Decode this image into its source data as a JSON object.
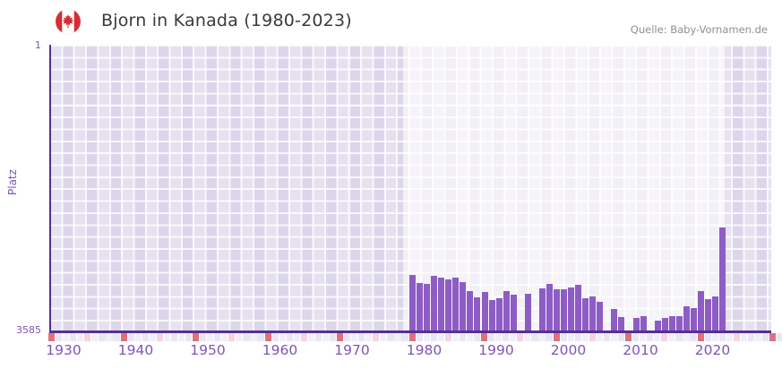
{
  "source": "Quelle: Baby-Vornamen.de",
  "chart_data": {
    "type": "bar",
    "title": "Bjorn in Kanada (1980-2023)",
    "ylabel": "Platz",
    "y_axis": {
      "top_label": "1",
      "bottom_label": "3585",
      "min": 1,
      "max": 3585,
      "inverted": true
    },
    "x_ticks": [
      1930,
      1940,
      1950,
      1960,
      1970,
      1980,
      1990,
      2000,
      2010,
      2020
    ],
    "x_range": [
      1930,
      2031
    ],
    "highlight_period": [
      1979,
      2023
    ],
    "grid": true,
    "legend": false,
    "colors": {
      "bar": "#8d5cc5",
      "axis": "#54318f",
      "decade_marker": "#e0707e",
      "half_decade_marker": "#f3d4e0",
      "marker_pale_a": "#f2eef9",
      "marker_pale_b": "#eae5f4",
      "tick_label": "#8055b8"
    },
    "points": [
      {
        "year": 1980,
        "platz": 2890
      },
      {
        "year": 1981,
        "platz": 2990
      },
      {
        "year": 1982,
        "platz": 3000
      },
      {
        "year": 1983,
        "platz": 2900
      },
      {
        "year": 1984,
        "platz": 2920
      },
      {
        "year": 1985,
        "platz": 2945
      },
      {
        "year": 1986,
        "platz": 2920
      },
      {
        "year": 1987,
        "platz": 2980
      },
      {
        "year": 1988,
        "platz": 3090
      },
      {
        "year": 1989,
        "platz": 3170
      },
      {
        "year": 1990,
        "platz": 3100
      },
      {
        "year": 1991,
        "platz": 3200
      },
      {
        "year": 1992,
        "platz": 3180
      },
      {
        "year": 1993,
        "platz": 3090
      },
      {
        "year": 1994,
        "platz": 3135
      },
      {
        "year": 1995,
        "platz": null
      },
      {
        "year": 1996,
        "platz": 3125
      },
      {
        "year": 1997,
        "platz": null
      },
      {
        "year": 1998,
        "platz": 3055
      },
      {
        "year": 1999,
        "platz": 3000
      },
      {
        "year": 2000,
        "platz": 3070
      },
      {
        "year": 2001,
        "platz": 3070
      },
      {
        "year": 2002,
        "platz": 3045
      },
      {
        "year": 2003,
        "platz": 3010
      },
      {
        "year": 2004,
        "platz": 3180
      },
      {
        "year": 2005,
        "platz": 3160
      },
      {
        "year": 2006,
        "platz": 3225
      },
      {
        "year": 2007,
        "platz": null
      },
      {
        "year": 2008,
        "platz": 3315
      },
      {
        "year": 2009,
        "platz": 3415
      },
      {
        "year": 2010,
        "platz": null
      },
      {
        "year": 2011,
        "platz": 3425
      },
      {
        "year": 2012,
        "platz": 3405
      },
      {
        "year": 2013,
        "platz": null
      },
      {
        "year": 2014,
        "platz": 3460
      },
      {
        "year": 2015,
        "platz": 3425
      },
      {
        "year": 2016,
        "platz": 3405
      },
      {
        "year": 2017,
        "platz": 3405
      },
      {
        "year": 2018,
        "platz": 3280
      },
      {
        "year": 2019,
        "platz": 3305
      },
      {
        "year": 2020,
        "platz": 3090
      },
      {
        "year": 2021,
        "platz": 3190
      },
      {
        "year": 2022,
        "platz": 3160
      },
      {
        "year": 2023,
        "platz": 2290
      }
    ]
  }
}
